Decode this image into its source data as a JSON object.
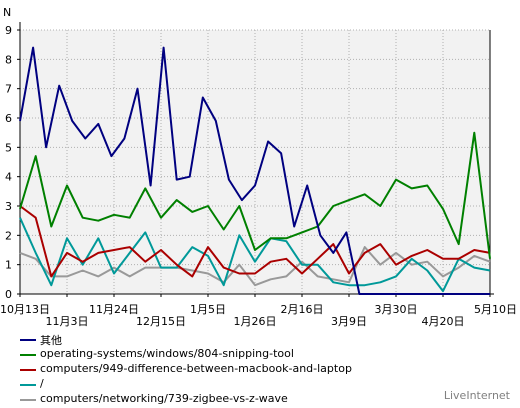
{
  "chart_data": {
    "type": "line",
    "ylabel": "N",
    "ylim": [
      0,
      9
    ],
    "yticks": [
      "0",
      "1",
      "2",
      "3",
      "4",
      "5",
      "6",
      "7",
      "8",
      "9"
    ],
    "grid": true,
    "n_points": 37,
    "x_ticks_top": [
      {
        "index": 0,
        "label": "10月13日"
      },
      {
        "index": 8,
        "label": "11月24日"
      },
      {
        "index": 16,
        "label": "1月5日"
      },
      {
        "index": 24,
        "label": "2月16日"
      },
      {
        "index": 32,
        "label": "3月30日"
      },
      {
        "index": 40,
        "label": "5月10日"
      }
    ],
    "x_ticks_bottom": [
      {
        "index": 4,
        "label": "11月3日"
      },
      {
        "index": 12,
        "label": "12月15日"
      },
      {
        "index": 20,
        "label": "1月26日"
      },
      {
        "index": 28,
        "label": "3月9日"
      },
      {
        "index": 36,
        "label": "4月20日"
      }
    ],
    "series": [
      {
        "name": "其他",
        "color": "#000080",
        "values": [
          5.9,
          8.4,
          5.0,
          7.1,
          5.9,
          5.3,
          5.8,
          4.7,
          5.3,
          7.0,
          3.7,
          8.4,
          3.9,
          4.0,
          6.7,
          5.9,
          3.9,
          3.2,
          3.7,
          5.2,
          4.8,
          2.3,
          3.7,
          2.0,
          1.4,
          2.1,
          0,
          0,
          0,
          0,
          0,
          0,
          0,
          0,
          0,
          0,
          0
        ]
      },
      {
        "name": "operating-systems/windows/804-snipping-tool",
        "color": "#008000",
        "values": [
          2.9,
          4.7,
          2.3,
          3.7,
          2.6,
          2.5,
          2.7,
          2.6,
          3.6,
          2.6,
          3.2,
          2.8,
          3.0,
          2.2,
          3.0,
          1.5,
          1.9,
          1.9,
          2.1,
          2.3,
          3.0,
          3.2,
          3.4,
          3.0,
          3.9,
          3.6,
          3.7,
          2.9,
          1.7,
          5.5,
          1.2
        ]
      },
      {
        "name": "computers/949-difference-between-macbook-and-laptop",
        "color": "#aa0000",
        "values": [
          3.0,
          2.6,
          0.6,
          1.4,
          1.1,
          1.4,
          1.5,
          1.6,
          1.1,
          1.5,
          1.0,
          0.6,
          1.6,
          0.9,
          0.7,
          0.7,
          1.1,
          1.2,
          0.7,
          1.2,
          1.7,
          0.7,
          1.4,
          1.7,
          1.0,
          1.3,
          1.5,
          1.2,
          1.2,
          1.5,
          1.4
        ]
      },
      {
        "name": "/",
        "color": "#009999",
        "values": [
          2.6,
          1.4,
          0.3,
          1.9,
          1.0,
          1.9,
          0.7,
          1.4,
          2.1,
          0.9,
          0.9,
          1.6,
          1.3,
          0.3,
          2.0,
          1.1,
          1.9,
          1.8,
          1.0,
          1.0,
          0.4,
          0.3,
          0.3,
          0.4,
          0.6,
          1.2,
          0.8,
          0.1,
          1.2,
          0.9,
          0.8
        ]
      },
      {
        "name": "computers/networking/739-zigbee-vs-z-wave",
        "color": "#999999",
        "values": [
          1.4,
          1.2,
          0.6,
          0.6,
          0.8,
          0.6,
          0.9,
          0.6,
          0.9,
          0.9,
          0.9,
          0.8,
          0.7,
          0.4,
          1.0,
          0.3,
          0.5,
          0.6,
          1.1,
          0.6,
          0.5,
          0.4,
          1.6,
          1.0,
          1.4,
          1.0,
          1.1,
          0.6,
          0.9,
          1.3,
          1.1
        ]
      }
    ]
  },
  "legend": [
    {
      "label": "其他",
      "color": "#000080"
    },
    {
      "label": "operating-systems/windows/804-snipping-tool",
      "color": "#008000"
    },
    {
      "label": "computers/949-difference-between-macbook-and-laptop",
      "color": "#aa0000"
    },
    {
      "label": "/",
      "color": "#009999"
    },
    {
      "label": "computers/networking/739-zigbee-vs-z-wave",
      "color": "#999999"
    }
  ],
  "brand": "LiveInternet"
}
